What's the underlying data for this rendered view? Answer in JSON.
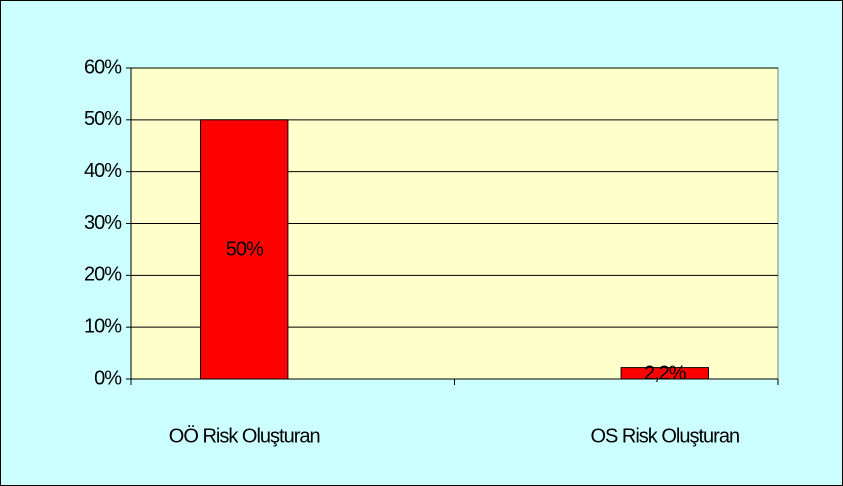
{
  "chart_data": {
    "type": "bar",
    "categories": [
      "OÖ Risk Oluşturan",
      "OS Risk Oluşturan"
    ],
    "values": [
      50,
      2.2
    ],
    "value_labels": [
      "50%",
      "2,2%"
    ],
    "color": "#ff0000",
    "ylim": [
      0,
      60
    ],
    "yticks": [
      {
        "value": 0,
        "label": "0%"
      },
      {
        "value": 10,
        "label": "10%"
      },
      {
        "value": 20,
        "label": "20%"
      },
      {
        "value": 30,
        "label": "30%"
      },
      {
        "value": 40,
        "label": "40%"
      },
      {
        "value": 50,
        "label": "50%"
      },
      {
        "value": 60,
        "label": "60%"
      }
    ],
    "grid": true
  }
}
